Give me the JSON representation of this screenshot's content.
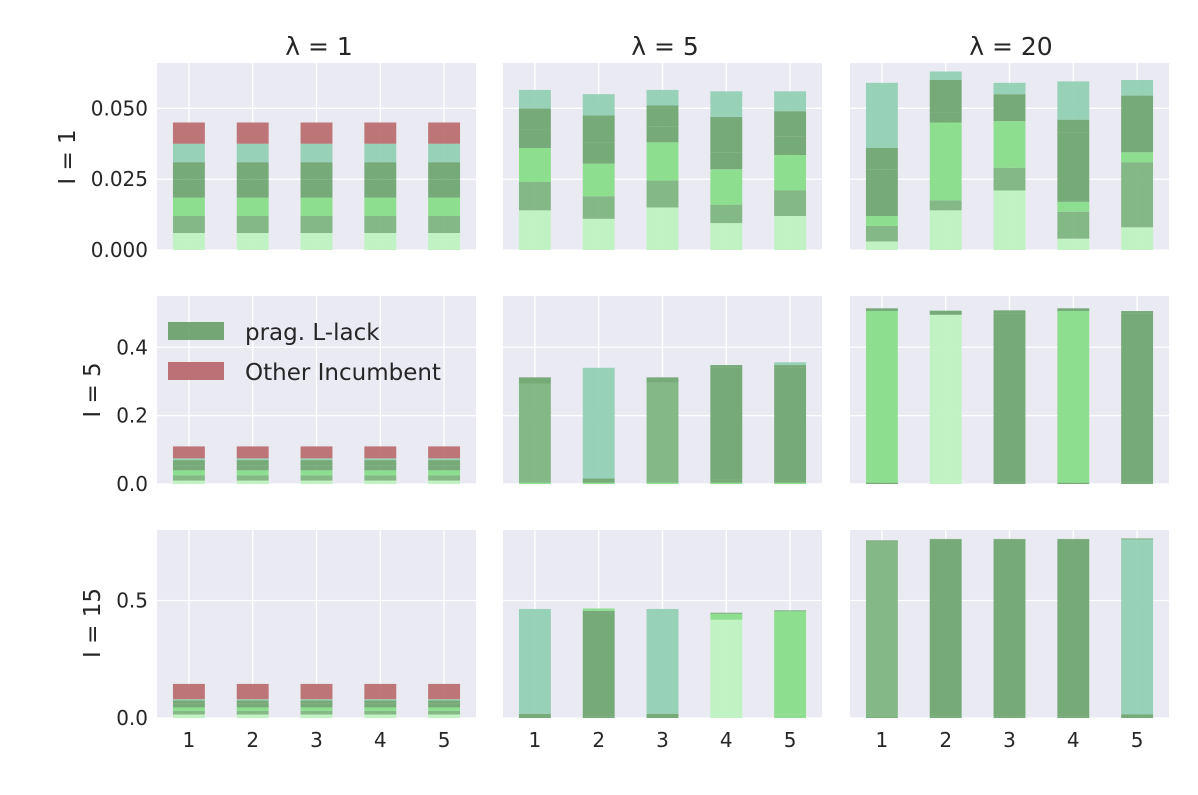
{
  "figure": {
    "column_titles": [
      "λ = 1",
      "λ = 5",
      "λ = 20"
    ],
    "row_labels": [
      "I = 1",
      "I = 5",
      "I = 15"
    ],
    "legend": {
      "placement": "upper-left of middle-left panel",
      "entries": [
        {
          "label": "prag. L-lack",
          "color": "#5e9a5e"
        },
        {
          "label": "Other Incumbent",
          "color": "#b86a6e"
        }
      ]
    },
    "colors": {
      "background": "#eaeaf2",
      "gridline": "#ffffff",
      "light_green": "#bdf2bf",
      "medium_green": "#7cb37e",
      "bright_green": "#86dc88",
      "dark_green": "#6ba46e",
      "teal_green": "#8fceb2",
      "incumbent_red": "#b86a6e"
    }
  },
  "chart_data": [
    {
      "type": "bar",
      "stacked": true,
      "row": 0,
      "col": 0,
      "categories": [
        "1",
        "2",
        "3",
        "4",
        "5"
      ],
      "ylim": [
        0,
        0.066
      ],
      "yticks": [
        "0.000",
        "0.025",
        "0.050"
      ],
      "ytick_values": [
        0,
        0.025,
        0.05
      ],
      "show_yticks": true,
      "show_xticks": false,
      "grid": true,
      "segments": [
        {
          "color": "light_green",
          "values": [
            0.006,
            0.006,
            0.006,
            0.006,
            0.006
          ]
        },
        {
          "color": "medium_green",
          "values": [
            0.006,
            0.006,
            0.006,
            0.006,
            0.006
          ]
        },
        {
          "color": "bright_green",
          "values": [
            0.0065,
            0.0065,
            0.0065,
            0.0065,
            0.0065
          ]
        },
        {
          "color": "dark_green",
          "values": [
            0.0065,
            0.0065,
            0.0065,
            0.0065,
            0.0065
          ]
        },
        {
          "color": "dark_green",
          "values": [
            0.006,
            0.006,
            0.006,
            0.006,
            0.006
          ]
        },
        {
          "color": "teal_green",
          "values": [
            0.0065,
            0.0065,
            0.0065,
            0.0065,
            0.0065
          ]
        },
        {
          "color": "incumbent_red",
          "values": [
            0.0075,
            0.0075,
            0.0075,
            0.0075,
            0.0075
          ]
        }
      ]
    },
    {
      "type": "bar",
      "stacked": true,
      "row": 0,
      "col": 1,
      "categories": [
        "1",
        "2",
        "3",
        "4",
        "5"
      ],
      "ylim": [
        0,
        0.066
      ],
      "yticks": [],
      "ytick_values": [
        0,
        0.025,
        0.05
      ],
      "show_yticks": false,
      "show_xticks": false,
      "grid": true,
      "segments": [
        {
          "color": "light_green",
          "values": [
            0.014,
            0.011,
            0.015,
            0.0095,
            0.012
          ]
        },
        {
          "color": "medium_green",
          "values": [
            0.01,
            0.008,
            0.0095,
            0.0065,
            0.009
          ]
        },
        {
          "color": "bright_green",
          "values": [
            0.012,
            0.0115,
            0.0135,
            0.0125,
            0.0125
          ]
        },
        {
          "color": "dark_green",
          "values": [
            0.0065,
            0.0075,
            0.0055,
            0.006,
            0.0065
          ]
        },
        {
          "color": "dark_green",
          "values": [
            0.0075,
            0.0095,
            0.0075,
            0.0125,
            0.009
          ]
        },
        {
          "color": "teal_green",
          "values": [
            0.0065,
            0.0075,
            0.0055,
            0.009,
            0.007
          ]
        }
      ]
    },
    {
      "type": "bar",
      "stacked": true,
      "row": 0,
      "col": 2,
      "categories": [
        "1",
        "2",
        "3",
        "4",
        "5"
      ],
      "ylim": [
        0,
        0.066
      ],
      "yticks": [],
      "ytick_values": [
        0,
        0.025,
        0.05
      ],
      "show_yticks": false,
      "show_xticks": false,
      "grid": true,
      "segments": [
        {
          "color": "light_green",
          "values": [
            0.003,
            0.014,
            0.021,
            0.004,
            0.008
          ]
        },
        {
          "color": "medium_green",
          "values": [
            0.0055,
            0.0035,
            0.008,
            0.0095,
            0.023
          ]
        },
        {
          "color": "bright_green",
          "values": [
            0.0035,
            0.0275,
            0.0165,
            0.0035,
            0.0035
          ]
        },
        {
          "color": "dark_green",
          "values": [
            0.0165,
            0.0035,
            0.0,
            0.0245,
            0.0165
          ]
        },
        {
          "color": "dark_green",
          "values": [
            0.0075,
            0.0115,
            0.0095,
            0.0045,
            0.0035
          ]
        },
        {
          "color": "teal_green",
          "values": [
            0.023,
            0.003,
            0.004,
            0.0135,
            0.0055
          ]
        }
      ]
    },
    {
      "type": "bar",
      "stacked": true,
      "row": 1,
      "col": 0,
      "categories": [
        "1",
        "2",
        "3",
        "4",
        "5"
      ],
      "ylim": [
        0,
        0.55
      ],
      "yticks": [
        "0.0",
        "0.2",
        "0.4"
      ],
      "ytick_values": [
        0,
        0.2,
        0.4
      ],
      "show_yticks": true,
      "show_xticks": false,
      "grid": true,
      "segments": [
        {
          "color": "light_green",
          "values": [
            0.01,
            0.01,
            0.01,
            0.01,
            0.01
          ]
        },
        {
          "color": "medium_green",
          "values": [
            0.015,
            0.015,
            0.015,
            0.015,
            0.015
          ]
        },
        {
          "color": "bright_green",
          "values": [
            0.015,
            0.015,
            0.015,
            0.015,
            0.015
          ]
        },
        {
          "color": "dark_green",
          "values": [
            0.015,
            0.015,
            0.015,
            0.015,
            0.015
          ]
        },
        {
          "color": "dark_green",
          "values": [
            0.015,
            0.015,
            0.015,
            0.015,
            0.015
          ]
        },
        {
          "color": "teal_green",
          "values": [
            0.005,
            0.005,
            0.005,
            0.005,
            0.005
          ]
        },
        {
          "color": "incumbent_red",
          "values": [
            0.035,
            0.035,
            0.035,
            0.035,
            0.035
          ]
        }
      ]
    },
    {
      "type": "bar",
      "stacked": true,
      "row": 1,
      "col": 1,
      "categories": [
        "1",
        "2",
        "3",
        "4",
        "5"
      ],
      "ylim": [
        0,
        0.55
      ],
      "yticks": [],
      "ytick_values": [
        0,
        0.2,
        0.4
      ],
      "show_yticks": false,
      "show_xticks": false,
      "grid": true,
      "segments": [
        {
          "color": "bright_green",
          "values": [
            0.004,
            0.004,
            0.004,
            0.004,
            0.004
          ]
        },
        {
          "color": "dark_green",
          "values": [
            0.0,
            0.012,
            0.0,
            0.008,
            0.0
          ]
        },
        {
          "color": "medium_green",
          "values": [
            0.29,
            0.0,
            0.292,
            0.0,
            0.0
          ]
        },
        {
          "color": "teal_green",
          "values": [
            0.0,
            0.322,
            0.0,
            0.0,
            0.0
          ]
        },
        {
          "color": "dark_green",
          "values": [
            0.0,
            0.0,
            0.0,
            0.33,
            0.338
          ]
        },
        {
          "color": "dark_green",
          "values": [
            0.018,
            0.0,
            0.016,
            0.006,
            0.006
          ]
        },
        {
          "color": "teal_green",
          "values": [
            0.0,
            0.002,
            0.0,
            0.0,
            0.008
          ]
        }
      ]
    },
    {
      "type": "bar",
      "stacked": true,
      "row": 1,
      "col": 2,
      "categories": [
        "1",
        "2",
        "3",
        "4",
        "5"
      ],
      "ylim": [
        0,
        0.55
      ],
      "yticks": [],
      "ytick_values": [
        0,
        0.2,
        0.4
      ],
      "show_yticks": false,
      "show_xticks": false,
      "grid": true,
      "segments": [
        {
          "color": "dark_green",
          "values": [
            0.004,
            0.0,
            0.004,
            0.004,
            0.004
          ]
        },
        {
          "color": "bright_green",
          "values": [
            0.502,
            0.0,
            0.0,
            0.502,
            0.0
          ]
        },
        {
          "color": "light_green",
          "values": [
            0.0,
            0.495,
            0.0,
            0.0,
            0.0
          ]
        },
        {
          "color": "dark_green",
          "values": [
            0.0,
            0.0,
            0.496,
            0.0,
            0.494
          ]
        },
        {
          "color": "dark_green",
          "values": [
            0.008,
            0.012,
            0.008,
            0.008,
            0.008
          ]
        }
      ]
    },
    {
      "type": "bar",
      "stacked": true,
      "row": 2,
      "col": 0,
      "categories": [
        "1",
        "2",
        "3",
        "4",
        "5"
      ],
      "ylim": [
        0,
        0.8
      ],
      "yticks": [
        "0.0",
        "0.5"
      ],
      "ytick_values": [
        0,
        0.5
      ],
      "show_yticks": true,
      "show_xticks": true,
      "grid": true,
      "segments": [
        {
          "color": "light_green",
          "values": [
            0.015,
            0.015,
            0.015,
            0.015,
            0.015
          ]
        },
        {
          "color": "medium_green",
          "values": [
            0.015,
            0.015,
            0.015,
            0.015,
            0.015
          ]
        },
        {
          "color": "bright_green",
          "values": [
            0.015,
            0.015,
            0.015,
            0.015,
            0.015
          ]
        },
        {
          "color": "dark_green",
          "values": [
            0.015,
            0.015,
            0.015,
            0.015,
            0.015
          ]
        },
        {
          "color": "dark_green",
          "values": [
            0.015,
            0.015,
            0.015,
            0.015,
            0.015
          ]
        },
        {
          "color": "teal_green",
          "values": [
            0.005,
            0.005,
            0.005,
            0.005,
            0.005
          ]
        },
        {
          "color": "incumbent_red",
          "values": [
            0.065,
            0.065,
            0.065,
            0.065,
            0.065
          ]
        }
      ]
    },
    {
      "type": "bar",
      "stacked": true,
      "row": 2,
      "col": 1,
      "categories": [
        "1",
        "2",
        "3",
        "4",
        "5"
      ],
      "ylim": [
        0,
        0.8
      ],
      "yticks": [],
      "ytick_values": [
        0,
        0.5
      ],
      "show_yticks": false,
      "show_xticks": true,
      "grid": true,
      "segments": [
        {
          "color": "dark_green",
          "values": [
            0.018,
            0.008,
            0.018,
            0.0,
            0.0
          ]
        },
        {
          "color": "bright_green",
          "values": [
            0.0,
            0.0,
            0.0,
            0.0,
            0.014
          ]
        },
        {
          "color": "teal_green",
          "values": [
            0.446,
            0.0,
            0.446,
            0.0,
            0.0
          ]
        },
        {
          "color": "dark_green",
          "values": [
            0.0,
            0.448,
            0.0,
            0.0,
            0.0
          ]
        },
        {
          "color": "light_green",
          "values": [
            0.0,
            0.0,
            0.0,
            0.418,
            0.0
          ]
        },
        {
          "color": "bright_green",
          "values": [
            0.0,
            0.01,
            0.0,
            0.026,
            0.44
          ]
        },
        {
          "color": "dark_green",
          "values": [
            0.0,
            0.0,
            0.0,
            0.004,
            0.004
          ]
        }
      ]
    },
    {
      "type": "bar",
      "stacked": true,
      "row": 2,
      "col": 2,
      "categories": [
        "1",
        "2",
        "3",
        "4",
        "5"
      ],
      "ylim": [
        0,
        0.8
      ],
      "yticks": [],
      "ytick_values": [
        0,
        0.5
      ],
      "show_yticks": false,
      "show_xticks": true,
      "grid": true,
      "segments": [
        {
          "color": "dark_green",
          "values": [
            0.004,
            0.008,
            0.008,
            0.008,
            0.016
          ]
        },
        {
          "color": "medium_green",
          "values": [
            0.746,
            0.0,
            0.0,
            0.0,
            0.0
          ]
        },
        {
          "color": "dark_green",
          "values": [
            0.0,
            0.75,
            0.75,
            0.75,
            0.0
          ]
        },
        {
          "color": "teal_green",
          "values": [
            0.0,
            0.0,
            0.0,
            0.0,
            0.744
          ]
        },
        {
          "color": "dark_green",
          "values": [
            0.006,
            0.004,
            0.004,
            0.004,
            0.004
          ]
        }
      ]
    }
  ]
}
